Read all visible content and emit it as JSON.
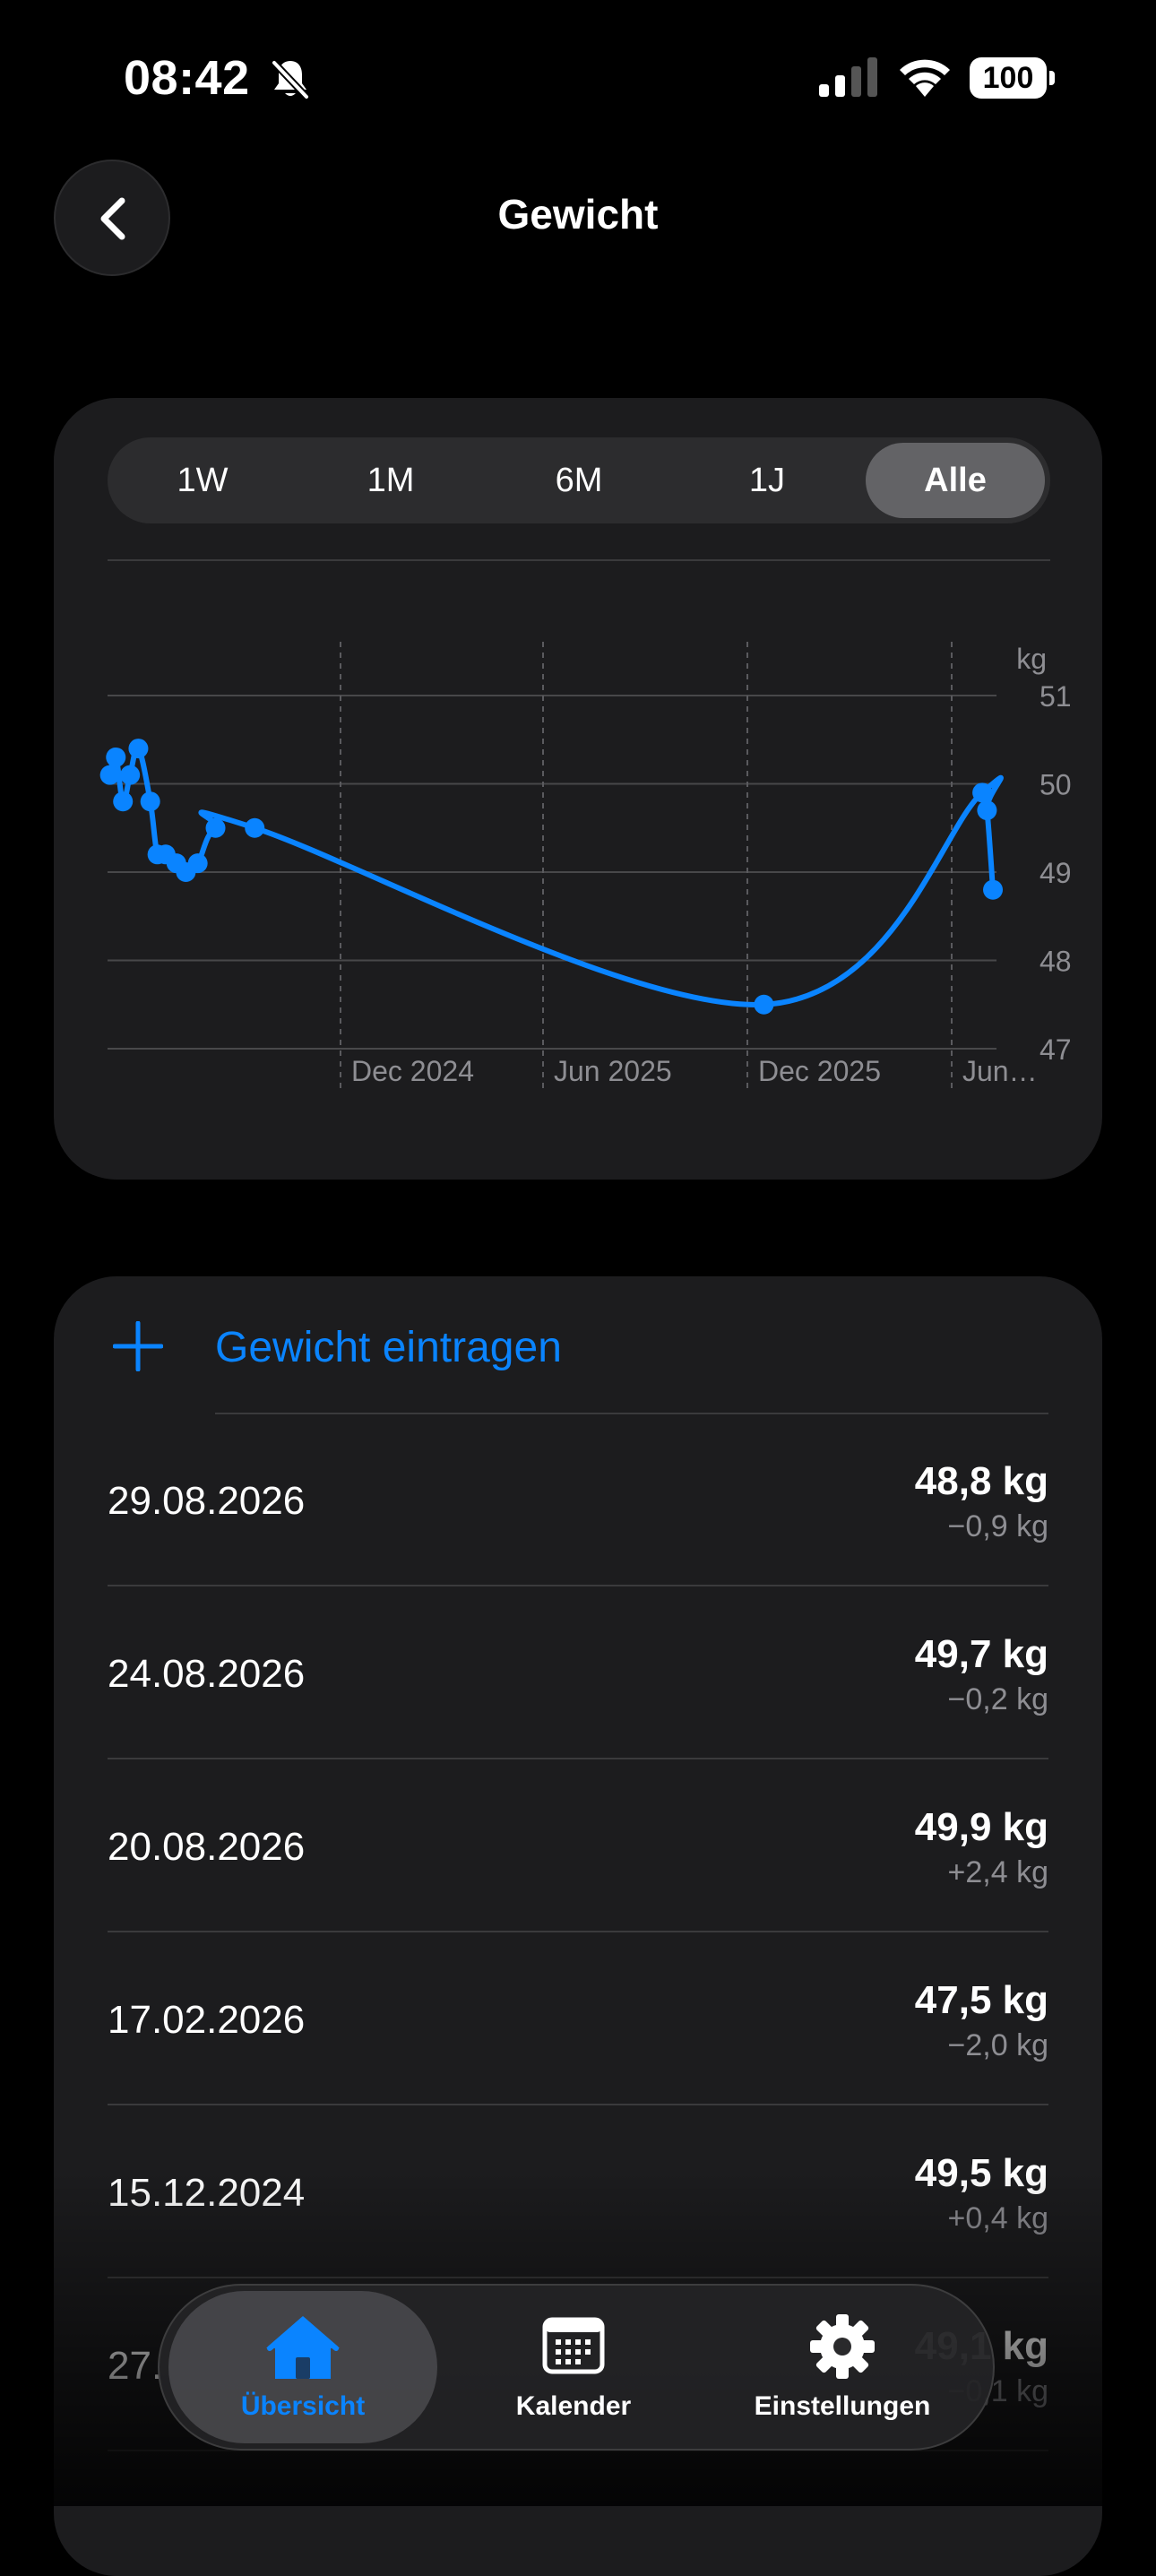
{
  "status_bar": {
    "time": "08:42",
    "battery": "100"
  },
  "header": {
    "title": "Gewicht"
  },
  "ranges": [
    {
      "label": "1W",
      "active": false
    },
    {
      "label": "1M",
      "active": false
    },
    {
      "label": "6M",
      "active": false
    },
    {
      "label": "1J",
      "active": false
    },
    {
      "label": "Alle",
      "active": true
    }
  ],
  "chart_data": {
    "type": "line",
    "unit_label": "kg",
    "y_ticks": [
      "51",
      "50",
      "49",
      "48",
      "47"
    ],
    "ylim": [
      46.6,
      51.3
    ],
    "x_ticks": [
      "Dec 2024",
      "Jun 2025",
      "Dec 2025",
      "Jun…"
    ],
    "grid": true,
    "color": "#0a84ff",
    "x": [
      "2024-08-15",
      "2024-08-20",
      "2024-08-26",
      "2024-09-01",
      "2024-09-08",
      "2024-09-18",
      "2024-09-24",
      "2024-10-01",
      "2024-10-10",
      "2024-10-18",
      "2024-10-28",
      "2024-11-12",
      "2024-12-15",
      "2026-02-17",
      "2026-08-20",
      "2026-08-24",
      "2026-08-29"
    ],
    "values": [
      50.1,
      50.3,
      49.8,
      50.1,
      50.4,
      49.8,
      49.2,
      49.2,
      49.1,
      49.0,
      49.1,
      49.5,
      49.5,
      47.5,
      49.9,
      49.7,
      48.8
    ]
  },
  "add_entry": {
    "label": "Gewicht eintragen"
  },
  "entries": [
    {
      "date": "29.08.2026",
      "weight": "48,8 kg",
      "delta": "−0,9 kg"
    },
    {
      "date": "24.08.2026",
      "weight": "49,7 kg",
      "delta": "−0,2 kg"
    },
    {
      "date": "20.08.2026",
      "weight": "49,9 kg",
      "delta": "+2,4 kg"
    },
    {
      "date": "17.02.2026",
      "weight": "47,5 kg",
      "delta": "−2,0 kg"
    },
    {
      "date": "15.12.2024",
      "weight": "49,5 kg",
      "delta": "+0,4 kg"
    },
    {
      "date": "27.",
      "weight": "49,1 kg",
      "delta": "−0,1 kg"
    }
  ],
  "tabbar": [
    {
      "label": "Übersicht",
      "icon": "house-icon",
      "active": true
    },
    {
      "label": "Kalender",
      "icon": "calendar-icon",
      "active": false
    },
    {
      "label": "Einstellungen",
      "icon": "gear-icon",
      "active": false
    }
  ]
}
